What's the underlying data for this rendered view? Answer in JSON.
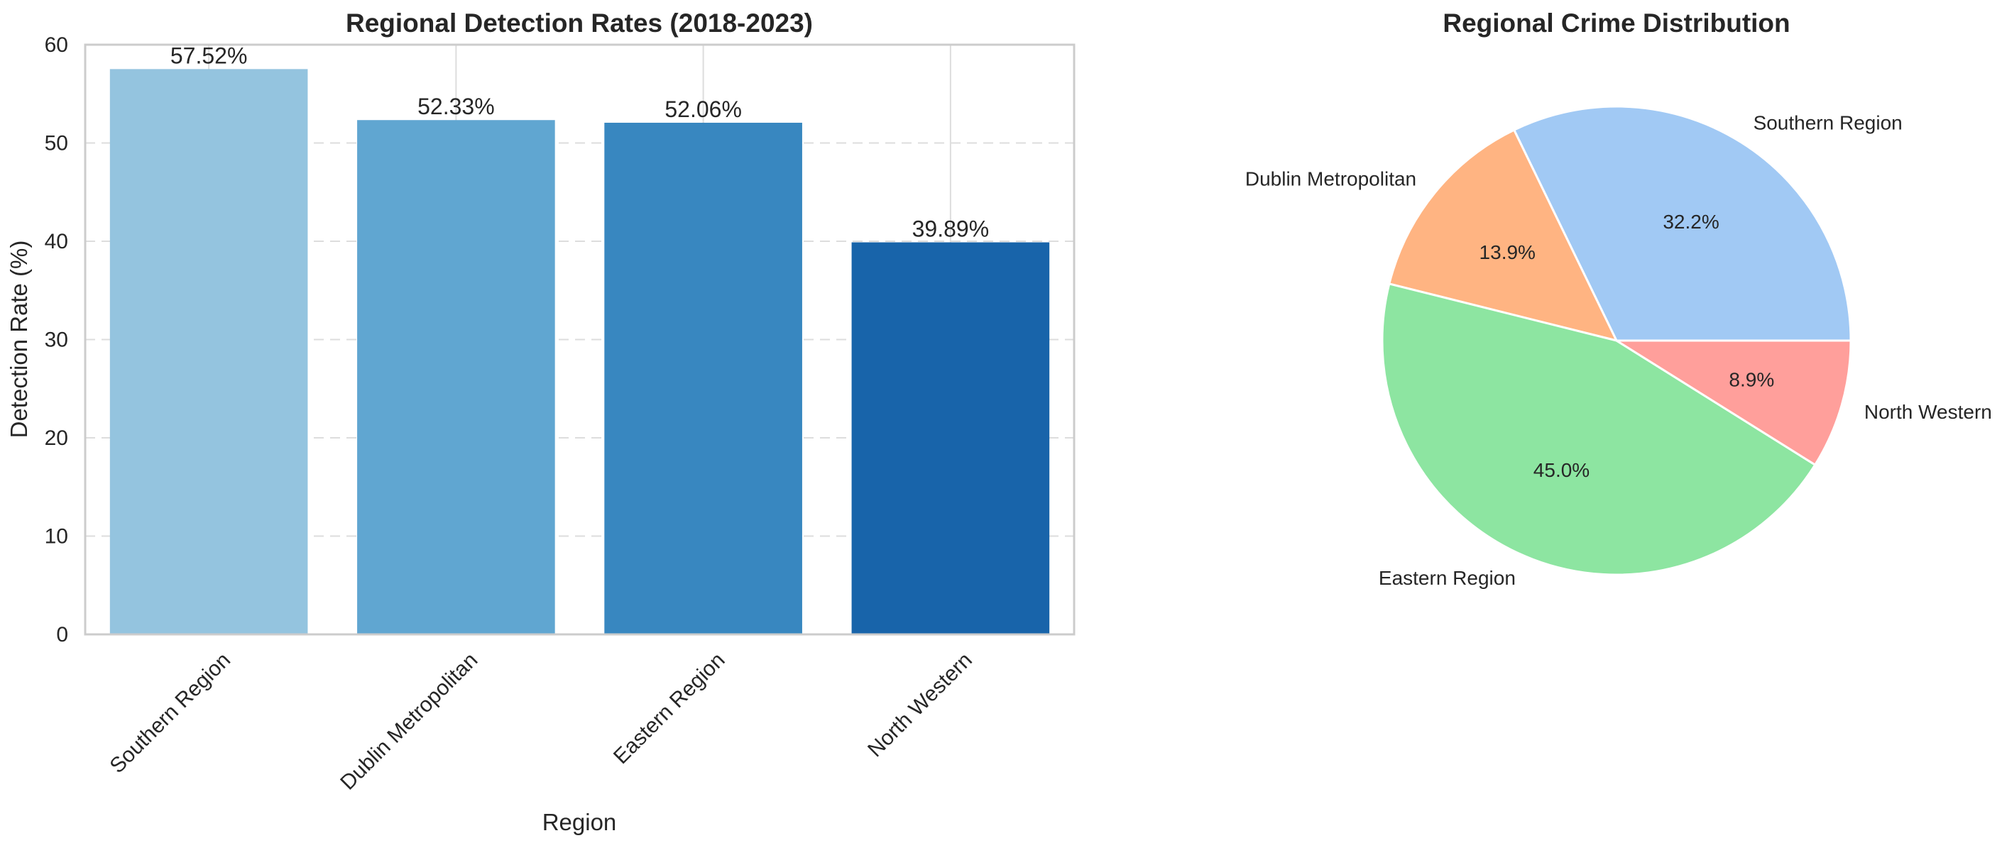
{
  "chart_data": [
    {
      "type": "bar",
      "title": "Regional Detection Rates (2018-2023)",
      "xlabel": "Region",
      "ylabel": "Detection Rate (%)",
      "categories": [
        "Southern Region",
        "Dublin Metropolitan",
        "Eastern Region",
        "North Western"
      ],
      "values": [
        57.52,
        52.33,
        52.06,
        39.89
      ],
      "value_labels": [
        "57.52%",
        "52.33%",
        "52.06%",
        "39.89%"
      ],
      "colors": [
        "#94c4df",
        "#60a6d1",
        "#3887c0",
        "#1864aa"
      ],
      "ylim": [
        0,
        60
      ],
      "yticks": [
        0,
        10,
        20,
        30,
        40,
        50,
        60
      ],
      "grid": true,
      "grid_style": "dashed"
    },
    {
      "type": "pie",
      "title": "Regional Crime Distribution",
      "labels": [
        "Southern Region",
        "Dublin Metropolitan",
        "Eastern Region",
        "North Western"
      ],
      "values": [
        32.2,
        13.9,
        45.0,
        8.9
      ],
      "pct_labels": [
        "32.2%",
        "13.9%",
        "45.0%",
        "8.9%"
      ],
      "colors": [
        "#a1c9f4",
        "#ffb482",
        "#8de5a1",
        "#ff9f9b"
      ],
      "start_angle_deg": 0,
      "direction": "counterclockwise"
    }
  ]
}
